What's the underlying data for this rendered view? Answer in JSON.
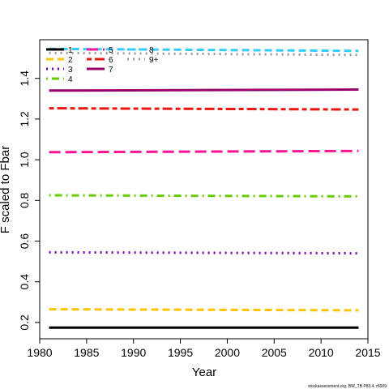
{
  "chart_data": {
    "type": "line",
    "title": "",
    "xlabel": "Year",
    "ylabel": "F scaled to Fbar",
    "xlim": [
      1980,
      2015
    ],
    "ylim": [
      0.12,
      1.59
    ],
    "xticks": [
      1980,
      1985,
      1990,
      1995,
      2000,
      2005,
      2010,
      2015
    ],
    "yticks": [
      0.2,
      0.4,
      0.6,
      0.8,
      1.0,
      1.2,
      1.4
    ],
    "ytick_labels": [
      "0.2",
      "0.4",
      "0.6",
      "0.8",
      "1.0",
      "1.2",
      "1.4"
    ],
    "grid": false,
    "legend_placement": "top-left",
    "x": [
      1981,
      2014
    ],
    "series": [
      {
        "name": "1",
        "color": "#000000",
        "dash": "solid",
        "values": [
          0.175,
          0.175
        ]
      },
      {
        "name": "2",
        "color": "#FFC400",
        "dash": "dashed",
        "values": [
          0.265,
          0.26
        ]
      },
      {
        "name": "3",
        "color": "#7B00BB",
        "dash": "dotted",
        "values": [
          0.545,
          0.54
        ]
      },
      {
        "name": "4",
        "color": "#66CC00",
        "dash": "dotdash",
        "values": [
          0.825,
          0.82
        ]
      },
      {
        "name": "5",
        "color": "#FF1493",
        "dash": "longdash",
        "values": [
          1.037,
          1.043
        ]
      },
      {
        "name": "6",
        "color": "#E8170F",
        "dash": "twodash",
        "values": [
          1.253,
          1.247
        ]
      },
      {
        "name": "7",
        "color": "#99006B",
        "dash": "solid",
        "values": [
          1.34,
          1.345
        ]
      },
      {
        "name": "8",
        "color": "#33CCFF",
        "dash": "dashed",
        "values": [
          1.545,
          1.535
        ]
      },
      {
        "name": "9+",
        "color": "#999999",
        "dash": "dotted",
        "values": [
          1.525,
          1.515
        ]
      }
    ]
  },
  "credit": "stockassessment.org, BW_TB P83.4, r6009"
}
